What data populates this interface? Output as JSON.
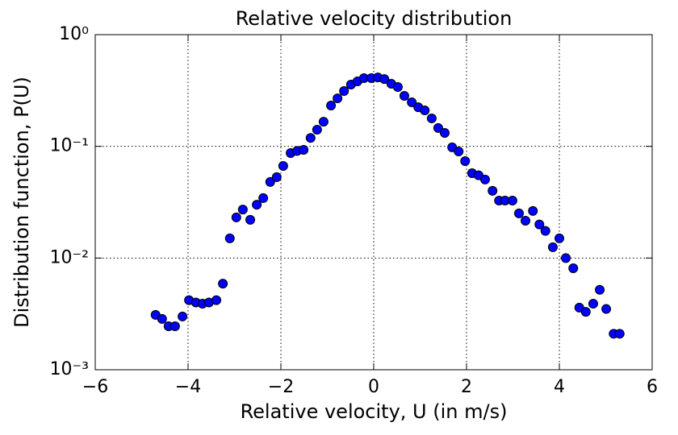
{
  "chart_data": {
    "type": "scatter",
    "title": "Relative velocity distribution",
    "x_label": "Relative velocity, U  (in m/s)",
    "y_label": "Distribution function, P(U)",
    "log_y": true,
    "grid": true,
    "xlim": [
      -6,
      6
    ],
    "xticks": [
      {
        "value": -6,
        "label": "−6"
      },
      {
        "value": -4,
        "label": "−4"
      },
      {
        "value": -2,
        "label": "−2"
      },
      0,
      2,
      4,
      6
    ],
    "ylim": [
      0.001,
      1
    ],
    "yticks": [
      {
        "value": 0.001,
        "label": "10⁻³"
      },
      {
        "value": 0.01,
        "label": "10⁻²"
      },
      {
        "value": 0.1,
        "label": "10⁻¹"
      },
      {
        "value": 1,
        "label": "10⁰"
      }
    ],
    "series": [
      {
        "color": "#0000ff",
        "x": [
          -4.7,
          -4.56,
          -4.42,
          -4.28,
          -4.12,
          -3.98,
          -3.83,
          -3.69,
          -3.55,
          -3.39,
          -3.25,
          -3.1,
          -2.96,
          -2.82,
          -2.66,
          -2.52,
          -2.38,
          -2.23,
          -2.09,
          -1.95,
          -1.79,
          -1.65,
          -1.51,
          -1.36,
          -1.22,
          -1.08,
          -0.92,
          -0.78,
          -0.64,
          -0.49,
          -0.35,
          -0.21,
          -0.05,
          0.09,
          0.23,
          0.38,
          0.52,
          0.66,
          0.82,
          0.96,
          1.1,
          1.25,
          1.39,
          1.53,
          1.69,
          1.83,
          1.97,
          2.12,
          2.26,
          2.4,
          2.56,
          2.7,
          2.83,
          2.99,
          3.13,
          3.27,
          3.43,
          3.57,
          3.7,
          3.86,
          4.0,
          4.14,
          4.3,
          4.43,
          4.57,
          4.73,
          4.87,
          5.01,
          5.17,
          5.3
        ],
        "values": [
          0.0031,
          0.00285,
          0.00245,
          0.00245,
          0.003,
          0.0042,
          0.004,
          0.0039,
          0.004,
          0.0042,
          0.0059,
          0.015,
          0.0231,
          0.0272,
          0.022,
          0.03,
          0.0344,
          0.048,
          0.053,
          0.0668,
          0.087,
          0.091,
          0.093,
          0.119,
          0.141,
          0.166,
          0.232,
          0.269,
          0.313,
          0.357,
          0.382,
          0.408,
          0.408,
          0.414,
          0.4,
          0.363,
          0.34,
          0.283,
          0.248,
          0.224,
          0.21,
          0.178,
          0.146,
          0.132,
          0.098,
          0.09,
          0.0738,
          0.0575,
          0.055,
          0.0504,
          0.04,
          0.0327,
          0.0327,
          0.0327,
          0.0251,
          0.0216,
          0.0264,
          0.02,
          0.0175,
          0.0125,
          0.015,
          0.01,
          0.0081,
          0.0036,
          0.0033,
          0.0039,
          0.0052,
          0.0035,
          0.0021,
          0.0021
        ]
      }
    ]
  }
}
